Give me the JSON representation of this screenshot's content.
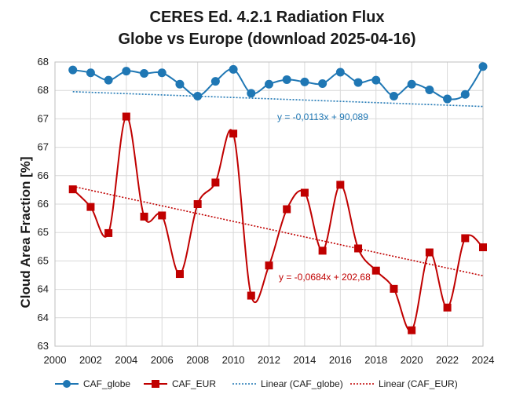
{
  "chart_data": {
    "type": "line",
    "title": [
      "CERES Ed. 4.2.1 Radiation Flux",
      "Globe vs Europe (download 2025-04-16)"
    ],
    "xlabel": "",
    "ylabel": "Cloud Area Fraction [%]",
    "xlim": [
      2000,
      2024
    ],
    "ylim": [
      63,
      68
    ],
    "x_ticks": [
      "2000",
      "2002",
      "2004",
      "2006",
      "2008",
      "2010",
      "2012",
      "2014",
      "2016",
      "2018",
      "2020",
      "2022",
      "2024"
    ],
    "y_ticks": [
      "63",
      "64",
      "64",
      "65",
      "65",
      "66",
      "66",
      "67",
      "67",
      "68",
      "68"
    ],
    "grid": true,
    "legend_position": "bottom",
    "x": [
      2001,
      2002,
      2003,
      2004,
      2005,
      2006,
      2007,
      2008,
      2009,
      2010,
      2011,
      2012,
      2013,
      2014,
      2015,
      2016,
      2017,
      2018,
      2019,
      2020,
      2021,
      2022,
      2023,
      2024
    ],
    "series": [
      {
        "name": "CAF_globe",
        "color": "#1f77b4",
        "marker": "circle",
        "values": [
          67.86,
          67.81,
          67.68,
          67.84,
          67.8,
          67.81,
          67.61,
          67.4,
          67.66,
          67.87,
          67.45,
          67.61,
          67.69,
          67.65,
          67.62,
          67.82,
          67.64,
          67.68,
          67.4,
          67.61,
          67.51,
          67.35,
          67.43,
          67.92
        ]
      },
      {
        "name": "CAF_EUR",
        "color": "#c00000",
        "marker": "square",
        "values": [
          65.76,
          65.45,
          64.99,
          67.04,
          65.28,
          65.3,
          64.27,
          65.5,
          65.88,
          66.74,
          63.89,
          64.42,
          65.41,
          65.7,
          64.68,
          65.84,
          64.72,
          64.33,
          64.01,
          63.28,
          64.65,
          63.68,
          64.9,
          64.74
        ]
      }
    ],
    "trendlines": [
      {
        "name": "Linear (CAF_globe)",
        "color": "#1f77b4",
        "slope": -0.0113,
        "intercept": 90.089,
        "equation": "y = -0,0113x + 90,089"
      },
      {
        "name": "Linear (CAF_EUR)",
        "color": "#c00000",
        "slope": -0.0684,
        "intercept": 202.68,
        "equation": "y = -0,0684x + 202,68"
      }
    ]
  }
}
